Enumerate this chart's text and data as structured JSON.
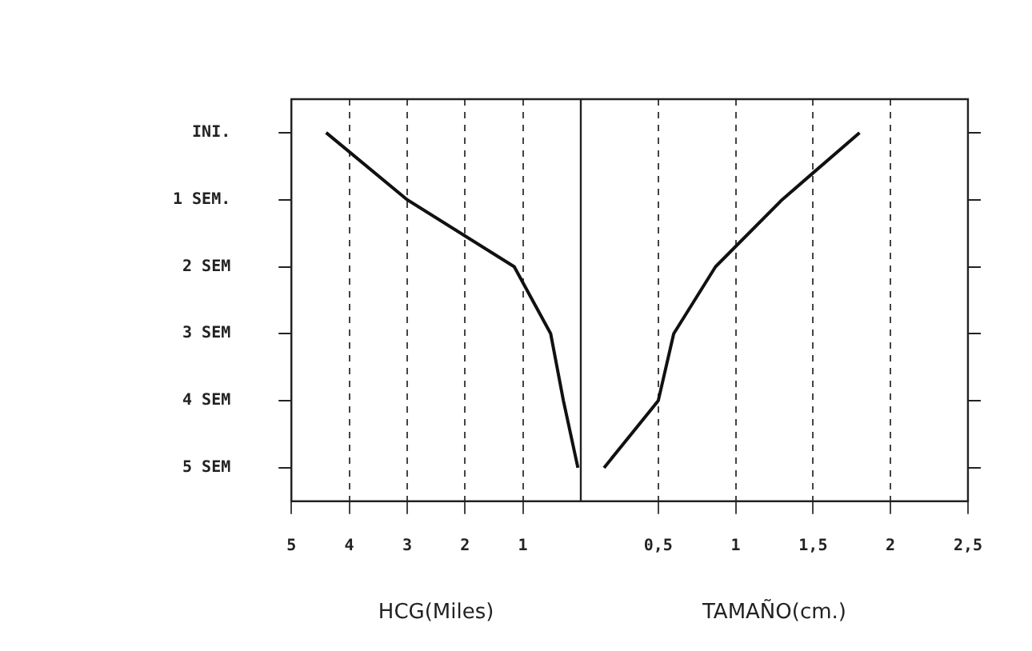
{
  "chart_data": [
    {
      "type": "line",
      "orientation": "horizontal",
      "xlabel": "HCG(Miles)",
      "categories": [
        "INI.",
        "1 SEM.",
        "2 SEM",
        "3 SEM",
        "4 SEM",
        "5 SEM"
      ],
      "series": [
        {
          "color": "#111111",
          "values": [
            4.4,
            3.0,
            1.15,
            0.52,
            0.3,
            0.05
          ]
        }
      ],
      "xlim": [
        5,
        0
      ],
      "xticks": [
        5,
        4,
        3,
        2,
        1
      ],
      "grid": "x"
    },
    {
      "type": "line",
      "orientation": "horizontal",
      "xlabel": "TAMAÑO(cm.)",
      "categories": [
        null,
        null,
        null,
        null,
        null,
        null
      ],
      "series": [
        {
          "color": "#111111",
          "values": [
            1.8,
            1.3,
            0.87,
            0.6,
            0.5,
            0.15
          ]
        }
      ],
      "xlim": [
        0,
        2.5
      ],
      "xticks": [
        {
          "value": 0.5,
          "label": "0,5"
        },
        1,
        {
          "value": 1.5,
          "label": "1,5"
        },
        2,
        {
          "value": 2.5,
          "label": "2,5"
        }
      ],
      "grid": "x",
      "tick_labels": "x"
    }
  ]
}
